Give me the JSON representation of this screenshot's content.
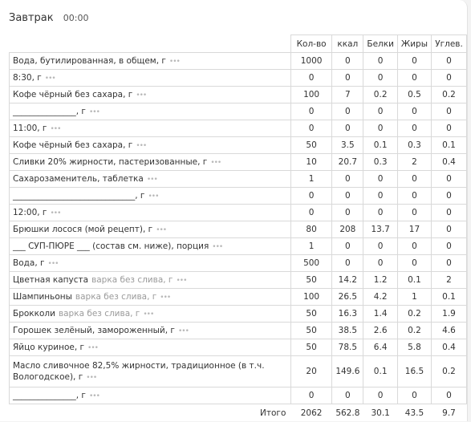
{
  "meal": {
    "title": "Завтрак",
    "time": "00:00"
  },
  "columns": [
    "Кол-во",
    "ккал",
    "Белки",
    "Жиры",
    "Углев."
  ],
  "rows": [
    {
      "name": "Вода, бутилированная, в общем, г",
      "note": "",
      "qty": "1000",
      "kcal": "0",
      "protein": "0",
      "fat": "0",
      "carbs": "0"
    },
    {
      "name": "8:30, г",
      "note": "",
      "qty": "0",
      "kcal": "0",
      "protein": "0",
      "fat": "0",
      "carbs": "0"
    },
    {
      "name": "Кофе чёрный без сахара, г",
      "note": "",
      "qty": "100",
      "kcal": "7",
      "protein": "0.2",
      "fat": "0.5",
      "carbs": "0.2"
    },
    {
      "name": "_______________, г",
      "note": "",
      "qty": "0",
      "kcal": "0",
      "protein": "0",
      "fat": "0",
      "carbs": "0"
    },
    {
      "name": "11:00, г",
      "note": "",
      "qty": "0",
      "kcal": "0",
      "protein": "0",
      "fat": "0",
      "carbs": "0"
    },
    {
      "name": "Кофе чёрный без сахара, г",
      "note": "",
      "qty": "50",
      "kcal": "3.5",
      "protein": "0.1",
      "fat": "0.3",
      "carbs": "0.1"
    },
    {
      "name": "Сливки 20% жирности, пастеризованные, г",
      "note": "",
      "qty": "10",
      "kcal": "20.7",
      "protein": "0.3",
      "fat": "2",
      "carbs": "0.4"
    },
    {
      "name": "Сахарозаменитель, таблетка",
      "note": "",
      "qty": "1",
      "kcal": "0",
      "protein": "0",
      "fat": "0",
      "carbs": "0"
    },
    {
      "name": "_____________________________, г",
      "note": "",
      "qty": "0",
      "kcal": "0",
      "protein": "0",
      "fat": "0",
      "carbs": "0"
    },
    {
      "name": "12:00, г",
      "note": "",
      "qty": "0",
      "kcal": "0",
      "protein": "0",
      "fat": "0",
      "carbs": "0"
    },
    {
      "name": "Брюшки лосося (мой рецепт), г",
      "note": "",
      "qty": "80",
      "kcal": "208",
      "protein": "13.7",
      "fat": "17",
      "carbs": "0"
    },
    {
      "name": "___ СУП-ПЮРЕ ___ (состав см. ниже), порция",
      "note": "",
      "qty": "1",
      "kcal": "0",
      "protein": "0",
      "fat": "0",
      "carbs": "0"
    },
    {
      "name": "Вода, г",
      "note": "",
      "qty": "500",
      "kcal": "0",
      "protein": "0",
      "fat": "0",
      "carbs": "0"
    },
    {
      "name": "Цветная капуста",
      "note": "варка без слива, г",
      "qty": "50",
      "kcal": "14.2",
      "protein": "1.2",
      "fat": "0.1",
      "carbs": "2"
    },
    {
      "name": "Шампиньоны",
      "note": "варка без слива, г",
      "qty": "100",
      "kcal": "26.5",
      "protein": "4.2",
      "fat": "1",
      "carbs": "0.1"
    },
    {
      "name": "Брокколи",
      "note": "варка без слива, г",
      "qty": "50",
      "kcal": "16.3",
      "protein": "1.4",
      "fat": "0.2",
      "carbs": "1.9"
    },
    {
      "name": "Горошек зелёный, замороженный, г",
      "note": "",
      "qty": "50",
      "kcal": "38.5",
      "protein": "2.6",
      "fat": "0.2",
      "carbs": "4.6"
    },
    {
      "name": "Яйцо куриное, г",
      "note": "",
      "qty": "50",
      "kcal": "78.5",
      "protein": "6.4",
      "fat": "5.8",
      "carbs": "0.4"
    },
    {
      "name": "Масло сливочное 82,5% жирности, традиционное (в т.ч. Вологодское), г",
      "note": "",
      "qty": "20",
      "kcal": "149.6",
      "protein": "0.1",
      "fat": "16.5",
      "carbs": "0.2",
      "tall": true
    },
    {
      "name": "_______________, г",
      "note": "",
      "qty": "0",
      "kcal": "0",
      "protein": "0",
      "fat": "0",
      "carbs": "0"
    }
  ],
  "dots_glyph": "•••",
  "total": {
    "label": "Итого",
    "qty": "2062",
    "kcal": "562.8",
    "protein": "30.1",
    "fat": "43.5",
    "carbs": "9.7"
  }
}
